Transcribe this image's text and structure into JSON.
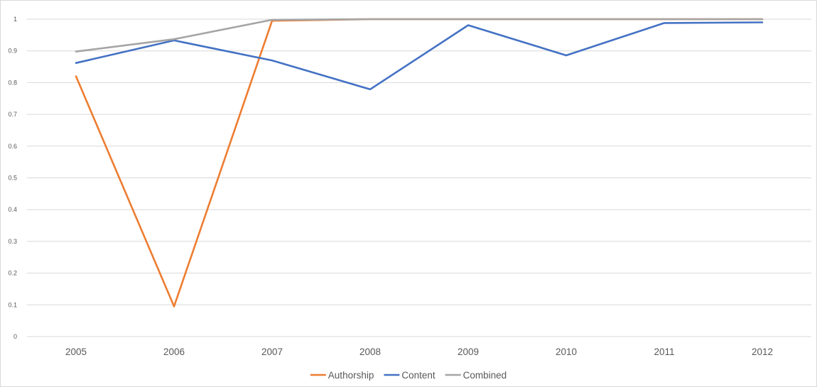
{
  "chart_data": {
    "type": "line",
    "title": "",
    "xlabel": "",
    "ylabel": "",
    "categories": [
      "2005",
      "2006",
      "2007",
      "2008",
      "2009",
      "2010",
      "2011",
      "2012"
    ],
    "y_ticks": [
      "0",
      "0.1",
      "0.2",
      "0.3",
      "0.4",
      "0.5",
      "0.6",
      "0.7",
      "0.8",
      "0.9",
      "1"
    ],
    "ylim": [
      0,
      1
    ],
    "grid": "horizontal",
    "legend_position": "bottom",
    "series": [
      {
        "name": "Authorship",
        "color": "#ed7d31",
        "values": [
          0.82,
          0.095,
          0.995,
          1.0,
          1.0,
          1.0,
          1.0,
          1.0
        ]
      },
      {
        "name": "Content",
        "color": "#4472c4",
        "values": [
          0.862,
          0.933,
          0.87,
          0.779,
          0.981,
          0.886,
          0.988,
          0.99
        ]
      },
      {
        "name": "Combined",
        "color": "#a5a5a5",
        "values": [
          0.898,
          0.937,
          0.998,
          1.0,
          1.0,
          1.0,
          1.0,
          1.0
        ]
      }
    ]
  }
}
